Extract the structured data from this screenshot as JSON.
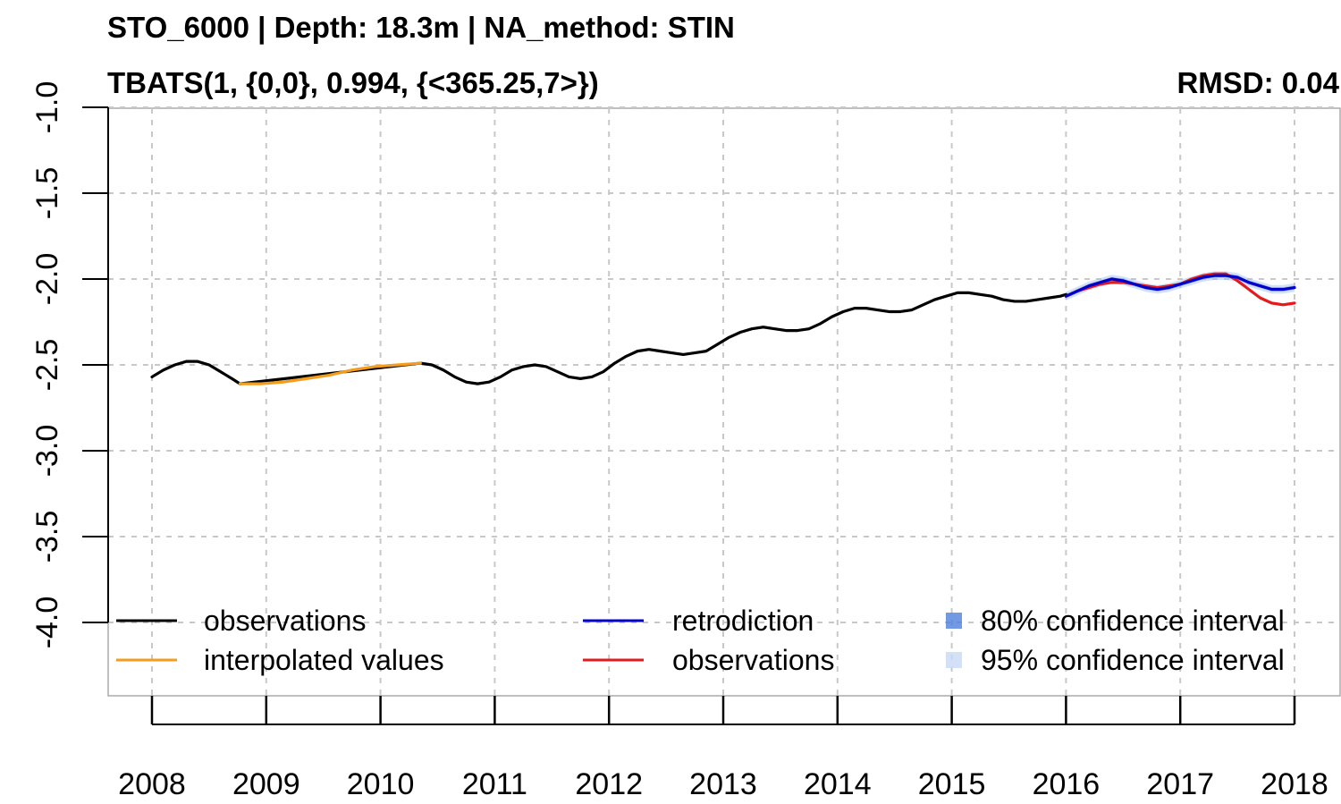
{
  "chart_data": {
    "type": "line",
    "title": "STO_6000 | Depth: 18.3m | NA_method: STIN",
    "subtitle": "TBATS(1, {0,0}, 0.994, {<365.25,7>})",
    "annotation": "RMSD: 0.04",
    "xlabel": "",
    "ylabel": "",
    "xlim": [
      2007.6,
      2018.4
    ],
    "ylim": [
      -4.4,
      -1.0
    ],
    "x_ticks": [
      2008,
      2009,
      2010,
      2011,
      2012,
      2013,
      2014,
      2015,
      2016,
      2017,
      2018
    ],
    "x_tick_labels": [
      "2008",
      "2009",
      "2010",
      "2011",
      "2012",
      "2013",
      "2014",
      "2015",
      "2016",
      "2017",
      "2018"
    ],
    "y_ticks": [
      -1.0,
      -1.5,
      -2.0,
      -2.5,
      -3.0,
      -3.5,
      -4.0
    ],
    "y_tick_labels": [
      "-1.0",
      "-1.5",
      "-2.0",
      "-2.5",
      "-3.0",
      "-3.5",
      "-4.0"
    ],
    "grid": true,
    "legend_position": "bottom",
    "series": [
      {
        "name": "observations",
        "color": "#000000",
        "x": [
          2008.0,
          2008.1,
          2008.2,
          2008.3,
          2008.4,
          2008.5,
          2008.6,
          2008.7,
          2008.77,
          2010.35,
          2010.45,
          2010.55,
          2010.65,
          2010.75,
          2010.85,
          2010.95,
          2011.05,
          2011.15,
          2011.25,
          2011.35,
          2011.45,
          2011.55,
          2011.65,
          2011.75,
          2011.85,
          2011.95,
          2012.05,
          2012.15,
          2012.25,
          2012.35,
          2012.45,
          2012.55,
          2012.65,
          2012.75,
          2012.85,
          2012.95,
          2013.05,
          2013.15,
          2013.25,
          2013.35,
          2013.45,
          2013.55,
          2013.65,
          2013.75,
          2013.85,
          2013.95,
          2014.05,
          2014.15,
          2014.25,
          2014.35,
          2014.45,
          2014.55,
          2014.65,
          2014.75,
          2014.85,
          2014.95,
          2015.05,
          2015.15,
          2015.25,
          2015.35,
          2015.45,
          2015.55,
          2015.65,
          2015.75,
          2015.85,
          2015.95,
          2016.0
        ],
        "y": [
          -2.57,
          -2.53,
          -2.5,
          -2.48,
          -2.48,
          -2.5,
          -2.54,
          -2.58,
          -2.61,
          -2.49,
          -2.5,
          -2.53,
          -2.57,
          -2.6,
          -2.61,
          -2.6,
          -2.57,
          -2.53,
          -2.51,
          -2.5,
          -2.51,
          -2.54,
          -2.57,
          -2.58,
          -2.57,
          -2.54,
          -2.49,
          -2.45,
          -2.42,
          -2.41,
          -2.42,
          -2.43,
          -2.44,
          -2.43,
          -2.42,
          -2.38,
          -2.34,
          -2.31,
          -2.29,
          -2.28,
          -2.29,
          -2.3,
          -2.3,
          -2.29,
          -2.26,
          -2.22,
          -2.19,
          -2.17,
          -2.17,
          -2.18,
          -2.19,
          -2.19,
          -2.18,
          -2.15,
          -2.12,
          -2.1,
          -2.08,
          -2.08,
          -2.09,
          -2.1,
          -2.12,
          -2.13,
          -2.13,
          -2.12,
          -2.11,
          -2.1,
          -2.09
        ]
      },
      {
        "name": "interpolated values",
        "color": "#f39c1d",
        "x": [
          2008.77,
          2008.95,
          2009.15,
          2009.35,
          2009.55,
          2009.75,
          2009.95,
          2010.15,
          2010.35
        ],
        "y": [
          -2.61,
          -2.61,
          -2.6,
          -2.58,
          -2.56,
          -2.53,
          -2.51,
          -2.5,
          -2.49
        ]
      },
      {
        "name": "retrodiction",
        "color": "#0000cc",
        "x": [
          2016.0,
          2016.1,
          2016.2,
          2016.3,
          2016.4,
          2016.5,
          2016.6,
          2016.7,
          2016.8,
          2016.9,
          2017.0,
          2017.1,
          2017.2,
          2017.3,
          2017.4,
          2017.5,
          2017.6,
          2017.7,
          2017.8,
          2017.9,
          2018.0
        ],
        "y": [
          -2.1,
          -2.07,
          -2.04,
          -2.02,
          -2.0,
          -2.01,
          -2.03,
          -2.05,
          -2.06,
          -2.05,
          -2.03,
          -2.01,
          -1.99,
          -1.98,
          -1.98,
          -1.99,
          -2.02,
          -2.04,
          -2.06,
          -2.06,
          -2.05
        ]
      },
      {
        "name": "observations",
        "color": "#e41a1c",
        "x": [
          2016.0,
          2016.1,
          2016.2,
          2016.3,
          2016.4,
          2016.5,
          2016.6,
          2016.7,
          2016.8,
          2016.9,
          2017.0,
          2017.1,
          2017.2,
          2017.3,
          2017.4,
          2017.5,
          2017.6,
          2017.7,
          2017.8,
          2017.9,
          2018.0
        ],
        "y": [
          -2.1,
          -2.07,
          -2.05,
          -2.03,
          -2.02,
          -2.02,
          -2.03,
          -2.04,
          -2.05,
          -2.04,
          -2.03,
          -2.0,
          -1.98,
          -1.97,
          -1.97,
          -2.01,
          -2.06,
          -2.11,
          -2.14,
          -2.15,
          -2.14
        ]
      }
    ],
    "confidence_bands": [
      {
        "name": "80% confidence interval",
        "color": "#4f7fdc",
        "opacity": 0.45,
        "half_width": 0.012
      },
      {
        "name": "95% confidence interval",
        "color": "#9dbcf0",
        "opacity": 0.45,
        "half_width": 0.025
      }
    ]
  },
  "legend": {
    "items": [
      {
        "label": "observations",
        "color": "#000000",
        "kind": "line"
      },
      {
        "label": "interpolated values",
        "color": "#f39c1d",
        "kind": "line"
      },
      {
        "label": "retrodiction",
        "color": "#0000cc",
        "kind": "line"
      },
      {
        "label": "observations",
        "color": "#e41a1c",
        "kind": "line"
      },
      {
        "label": "80% confidence interval",
        "color": "#4f7fdc",
        "kind": "box"
      },
      {
        "label": "95% confidence interval",
        "color": "#c8d9f6",
        "kind": "box"
      }
    ]
  }
}
